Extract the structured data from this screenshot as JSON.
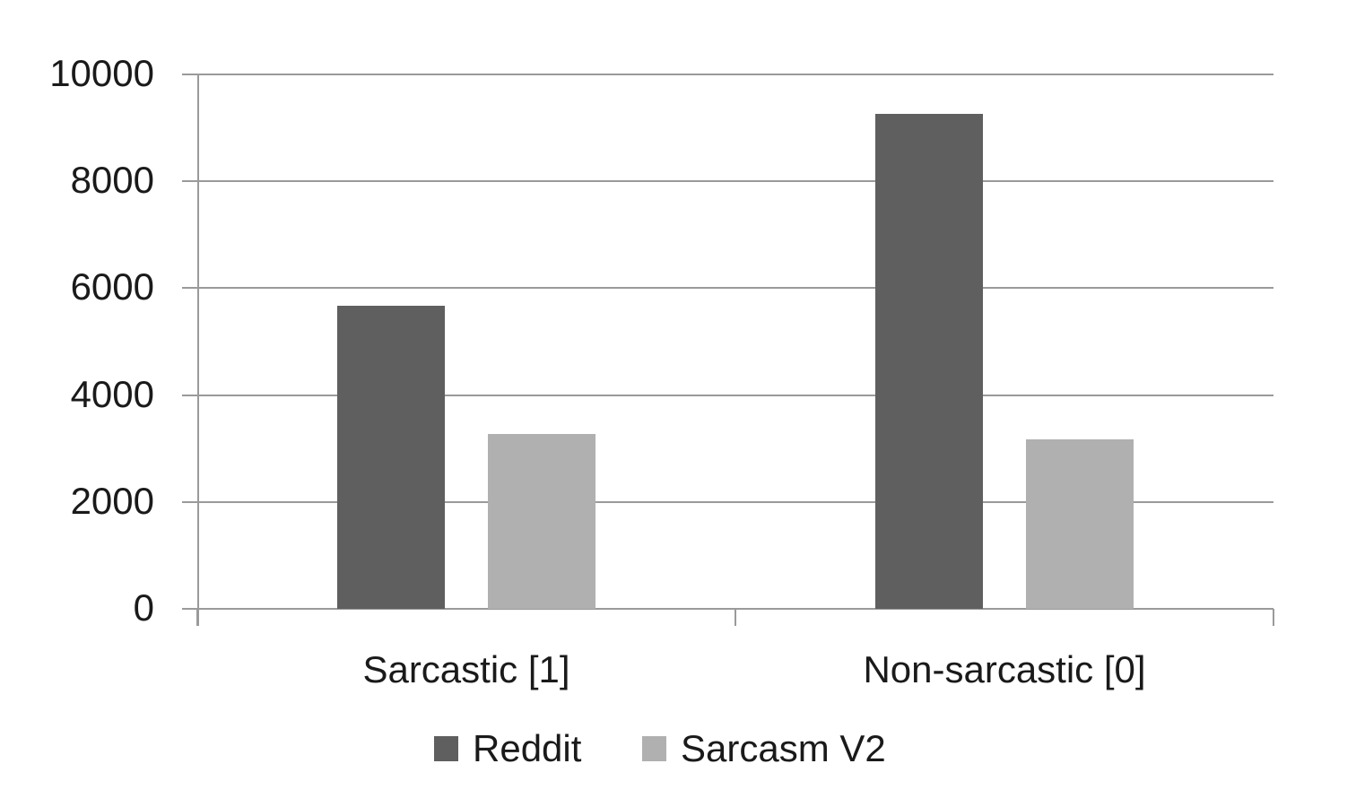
{
  "chart_data": {
    "type": "bar",
    "title": "",
    "xlabel": "",
    "ylabel": "",
    "categories": [
      "Sarcastic [1]",
      "Non-sarcastic [0]"
    ],
    "series": [
      {
        "name": "Reddit",
        "color": "#5f5f5f",
        "values": [
          5670,
          9260
        ]
      },
      {
        "name": "Sarcasm V2",
        "color": "#b0b0b0",
        "values": [
          3270,
          3170
        ]
      }
    ],
    "ylim": [
      0,
      10000
    ],
    "yticks": [
      0,
      2000,
      4000,
      6000,
      8000,
      10000
    ],
    "ytick_labels": [
      "0",
      "2000",
      "4000",
      "6000",
      "8000",
      "10000"
    ],
    "grid": true,
    "legend_position": "bottom"
  },
  "legend": {
    "items": [
      {
        "label": "Reddit",
        "color": "#5f5f5f"
      },
      {
        "label": "Sarcasm V2",
        "color": "#b0b0b0"
      }
    ]
  },
  "colors": {
    "grid": "#9a9a9a",
    "text": "#1a1a1a"
  }
}
